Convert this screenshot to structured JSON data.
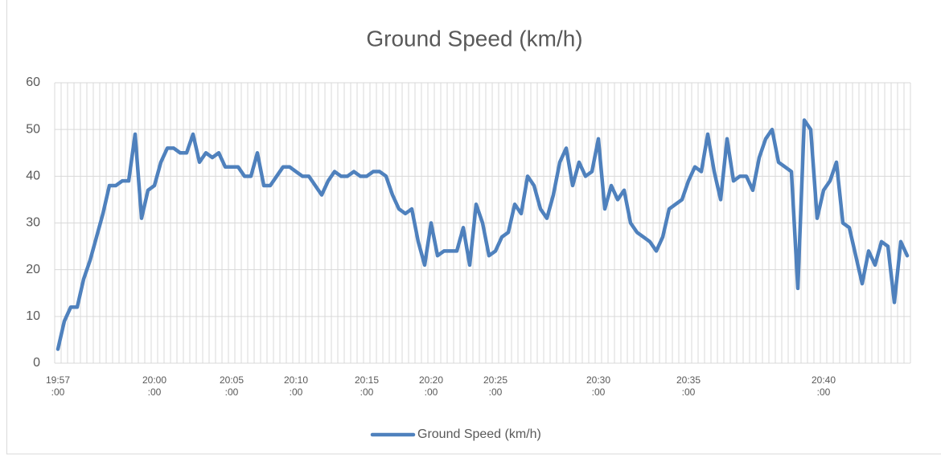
{
  "chart_data": {
    "type": "line",
    "title": "Ground Speed (km/h)",
    "categories": [
      "19:57:00",
      null,
      null,
      null,
      null,
      null,
      null,
      null,
      null,
      null,
      null,
      null,
      null,
      null,
      null,
      "20:00:00",
      null,
      null,
      null,
      null,
      null,
      null,
      null,
      null,
      null,
      null,
      null,
      "20:05:00",
      null,
      null,
      null,
      null,
      null,
      null,
      null,
      null,
      null,
      "20:10:00",
      null,
      null,
      null,
      null,
      null,
      null,
      null,
      null,
      null,
      null,
      "20:15:00",
      null,
      null,
      null,
      null,
      null,
      null,
      null,
      null,
      null,
      "20:20:00",
      null,
      null,
      null,
      null,
      null,
      null,
      null,
      null,
      null,
      "20:25:00",
      null,
      null,
      null,
      null,
      null,
      null,
      null,
      null,
      null,
      null,
      null,
      null,
      null,
      null,
      null,
      "20:30:00",
      null,
      null,
      null,
      null,
      null,
      null,
      null,
      null,
      null,
      null,
      null,
      null,
      null,
      "20:35:00",
      null,
      null,
      null,
      null,
      null,
      null,
      null,
      null,
      null,
      null,
      null,
      null,
      null,
      null,
      null,
      null,
      null,
      null,
      null,
      null,
      "20:40:00",
      null,
      null,
      null,
      null,
      null,
      null,
      null,
      null,
      null,
      null,
      null,
      null,
      null
    ],
    "series": [
      {
        "name": "Ground Speed (km/h)",
        "color": "#4f81bd",
        "values": [
          3,
          9,
          12,
          12,
          18,
          22,
          27,
          32,
          38,
          38,
          39,
          39,
          49,
          31,
          37,
          38,
          43,
          46,
          46,
          45,
          45,
          49,
          43,
          45,
          44,
          45,
          42,
          42,
          42,
          40,
          40,
          45,
          38,
          38,
          40,
          42,
          42,
          41,
          40,
          40,
          38,
          36,
          39,
          41,
          40,
          40,
          41,
          40,
          40,
          41,
          41,
          40,
          36,
          33,
          32,
          33,
          26,
          21,
          30,
          23,
          24,
          24,
          24,
          29,
          21,
          34,
          30,
          23,
          24,
          27,
          28,
          34,
          32,
          40,
          38,
          33,
          31,
          36,
          43,
          46,
          38,
          43,
          40,
          41,
          48,
          33,
          38,
          35,
          37,
          30,
          28,
          27,
          26,
          24,
          27,
          33,
          34,
          35,
          39,
          42,
          41,
          49,
          41,
          35,
          48,
          39,
          40,
          40,
          37,
          44,
          48,
          50,
          43,
          42,
          41,
          16,
          52,
          50,
          31,
          37,
          39,
          43,
          30,
          29,
          23,
          17,
          24,
          21,
          26,
          25,
          13,
          26,
          23
        ]
      }
    ],
    "ylim": [
      0,
      60
    ],
    "yticks": [
      0,
      10,
      20,
      30,
      40,
      50,
      60
    ],
    "grid": true,
    "legend": "bottom"
  }
}
